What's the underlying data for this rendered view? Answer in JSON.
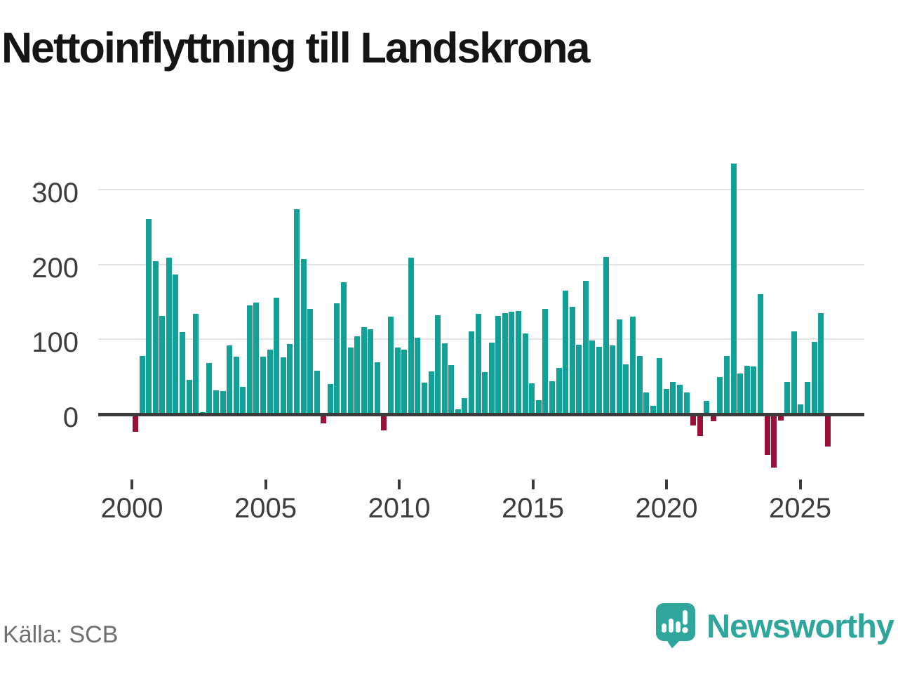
{
  "title": "Nettoinflyttning till Landskrona",
  "source_label": "Källa: SCB",
  "brand": {
    "name": "Newsworthy"
  },
  "colors": {
    "positive_bar": "#11a197",
    "negative_bar": "#9b1038",
    "baseline": "#3b3b3b",
    "gridline": "#e3e3e3",
    "axis_text": "#3d3d3d",
    "source_text": "#6f6f6f",
    "brand_teal": "#2fa69c",
    "title_text": "#151515"
  },
  "chart_data": {
    "type": "bar",
    "title": "Nettoinflyttning till Landskrona",
    "frequency": "quarterly",
    "x_start_year": 2000,
    "x_tick_years": [
      2000,
      2005,
      2010,
      2015,
      2020,
      2025
    ],
    "y_ticks": [
      0,
      100,
      200,
      300
    ],
    "ylim": [
      -85,
      345
    ],
    "grid": "horizontal",
    "legend": "none",
    "values": [
      -23,
      78,
      261,
      204,
      131,
      209,
      187,
      110,
      46,
      134,
      3,
      68,
      32,
      31,
      92,
      77,
      37,
      145,
      149,
      77,
      86,
      156,
      76,
      94,
      274,
      207,
      141,
      58,
      -12,
      40,
      148,
      176,
      89,
      104,
      116,
      113,
      69,
      -22,
      130,
      89,
      86,
      209,
      102,
      42,
      57,
      132,
      95,
      66,
      7,
      22,
      111,
      134,
      56,
      96,
      131,
      135,
      137,
      138,
      108,
      41,
      19,
      141,
      44,
      62,
      165,
      143,
      93,
      178,
      98,
      90,
      210,
      92,
      127,
      67,
      130,
      78,
      29,
      11,
      75,
      34,
      43,
      39,
      29,
      -15,
      -29,
      18,
      -9,
      50,
      78,
      335,
      54,
      65,
      64,
      160,
      -54,
      -71,
      -8,
      43,
      111,
      13,
      43,
      97,
      135,
      -43
    ]
  }
}
